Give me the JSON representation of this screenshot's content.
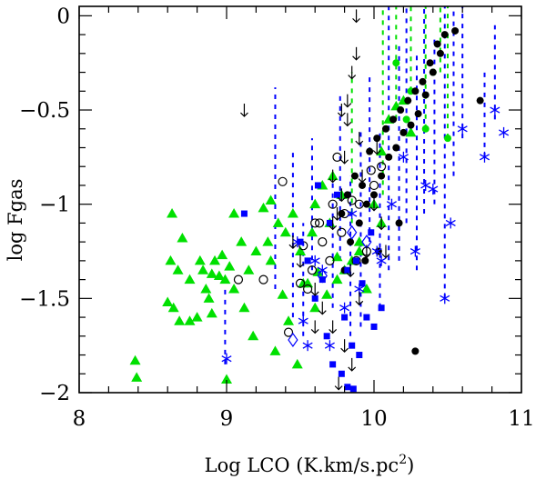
{
  "chart_data": {
    "type": "scatter",
    "title": "",
    "xlabel": "Log LCO (K.km/s.pc",
    "xlabel_sup": "2",
    "xlabel_close": ")",
    "ylabel": "log Fgas",
    "xlim": [
      8,
      11
    ],
    "ylim": [
      -2,
      0.05
    ],
    "x_major_ticks": [
      8,
      9,
      10,
      11
    ],
    "x_tick_labels": [
      "8",
      "9",
      "10",
      "11"
    ],
    "x_minor_step": 0.2,
    "y_major_ticks": [
      -2,
      -1.5,
      -1,
      -0.5,
      0
    ],
    "y_tick_labels": [
      "−2",
      "−1.5",
      "−1",
      "−0.5",
      "0"
    ],
    "y_minor_step": 0.1,
    "colors": {
      "green": "#00e000",
      "blue": "#0000ff",
      "black": "#000000"
    },
    "series": [
      {
        "name": "green triangles",
        "marker": "triangle",
        "color": "#00e000",
        "x": [
          8.38,
          8.39,
          8.6,
          8.62,
          8.64,
          8.67,
          8.63,
          8.7,
          8.75,
          8.8,
          8.82,
          8.84,
          8.86,
          8.88,
          8.9,
          8.92,
          8.95,
          8.97,
          8.99,
          9.0,
          9.02,
          9.05,
          9.1,
          9.15,
          9.2,
          9.25,
          9.3,
          9.35,
          9.4,
          9.45,
          9.5,
          9.55,
          9.6,
          9.65,
          9.7,
          9.75,
          9.8,
          9.85,
          9.9,
          9.95,
          10.0,
          10.05,
          10.1,
          10.15,
          10.2,
          10.25,
          9.12,
          9.28,
          9.38,
          9.52,
          9.62,
          9.68,
          9.72,
          9.78,
          8.68,
          8.75,
          8.9,
          9.05,
          9.18,
          9.33,
          9.48,
          9.58,
          9.3,
          9.42,
          9.6,
          9.75,
          9.9,
          10.05
        ],
        "y": [
          -1.83,
          -1.92,
          -1.52,
          -1.3,
          -1.55,
          -1.35,
          -1.05,
          -1.18,
          -1.4,
          -1.6,
          -1.3,
          -1.35,
          -1.45,
          -1.5,
          -1.37,
          -1.3,
          -1.38,
          -1.27,
          -1.4,
          -1.93,
          -1.33,
          -1.05,
          -1.2,
          -1.35,
          -1.25,
          -1.02,
          -0.98,
          -1.1,
          -1.15,
          -1.05,
          -1.25,
          -1.42,
          -1.0,
          -0.9,
          -1.1,
          -1.28,
          -1.35,
          -1.3,
          -1.2,
          -1.45,
          -1.0,
          -0.72,
          -0.55,
          -0.48,
          -0.45,
          -0.62,
          -1.55,
          -1.2,
          -1.48,
          -1.42,
          -1.36,
          -1.48,
          -0.85,
          -0.95,
          -1.62,
          -1.62,
          -1.58,
          -1.45,
          -1.7,
          -1.78,
          -1.85,
          -1.15,
          -1.3,
          -1.62,
          -1.55,
          -1.4,
          -1.25,
          -1.1
        ]
      },
      {
        "name": "green dots",
        "marker": "dot",
        "color": "#00e000",
        "x": [
          10.15,
          10.25,
          10.35,
          10.5,
          10.4,
          10.22
        ],
        "y": [
          -0.25,
          -0.4,
          -0.6,
          -0.65,
          -0.3,
          -0.55
        ]
      },
      {
        "name": "black dots",
        "marker": "dot",
        "color": "#000000",
        "x": [
          9.78,
          9.82,
          9.87,
          9.92,
          9.97,
          10.02,
          10.08,
          10.13,
          10.18,
          10.23,
          10.28,
          10.33,
          10.38,
          10.43,
          10.48,
          10.55,
          10.72,
          9.84,
          9.9,
          9.95,
          10.0,
          10.05,
          10.1,
          10.15,
          10.2,
          10.25,
          10.3,
          10.35,
          10.4,
          10.45,
          9.8,
          9.94,
          10.03,
          10.17,
          10.28
        ],
        "y": [
          -1.05,
          -0.95,
          -0.85,
          -0.9,
          -0.72,
          -0.65,
          -0.6,
          -0.55,
          -0.5,
          -0.45,
          -0.4,
          -0.35,
          -0.25,
          -0.15,
          -0.1,
          -0.08,
          -0.45,
          -1.2,
          -1.1,
          -1.0,
          -0.95,
          -0.85,
          -0.75,
          -0.7,
          -0.62,
          -0.58,
          -0.52,
          -0.42,
          -0.3,
          -0.2,
          -1.35,
          -1.3,
          -1.25,
          -1.1,
          -1.78
        ]
      },
      {
        "name": "open circles",
        "marker": "circle",
        "color": "#000000",
        "x": [
          9.08,
          9.25,
          9.38,
          9.5,
          9.55,
          9.6,
          9.65,
          9.7,
          9.75,
          9.8,
          9.85,
          9.9,
          9.95,
          10.0,
          10.05,
          9.52,
          9.58,
          9.63,
          9.72,
          9.78,
          9.88,
          9.98,
          9.42
        ],
        "y": [
          -1.4,
          -1.4,
          -0.88,
          -1.42,
          -1.45,
          -1.1,
          -1.2,
          -1.3,
          -0.75,
          -1.05,
          -0.98,
          -1.0,
          -1.25,
          -0.9,
          -0.8,
          -1.22,
          -1.35,
          -1.1,
          -1.0,
          -1.15,
          -1.3,
          -0.82,
          -1.68
        ]
      },
      {
        "name": "blue squares",
        "marker": "square",
        "color": "#0000ff",
        "x": [
          9.12,
          9.5,
          9.55,
          9.6,
          9.65,
          9.7,
          9.75,
          9.8,
          9.85,
          9.9,
          9.95,
          9.72,
          9.78,
          9.82,
          9.92,
          10.0,
          10.05,
          9.62,
          9.68,
          9.88,
          9.98,
          9.82,
          9.86
        ],
        "y": [
          -1.05,
          -1.2,
          -1.3,
          -1.5,
          -1.4,
          -1.1,
          -0.95,
          -1.6,
          -1.75,
          -1.8,
          -1.6,
          -1.85,
          -1.9,
          -1.35,
          -1.42,
          -1.65,
          -1.55,
          -0.9,
          -1.7,
          -1.3,
          -1.15,
          -1.97,
          -1.98
        ]
      },
      {
        "name": "blue asterisks",
        "marker": "asterisk",
        "color": "#0000ff",
        "x": [
          9.0,
          9.48,
          9.52,
          9.6,
          9.65,
          9.7,
          9.8,
          9.85,
          10.02,
          10.12,
          10.2,
          10.28,
          10.35,
          10.48,
          10.6,
          10.75,
          10.82,
          10.88,
          9.55,
          9.9,
          10.05,
          10.4,
          10.52
        ],
        "y": [
          -1.82,
          -1.2,
          -1.62,
          -1.3,
          -1.35,
          -1.75,
          -1.55,
          -1.05,
          -1.25,
          -1.0,
          -0.75,
          -1.25,
          -0.9,
          -1.5,
          -0.6,
          -0.75,
          -0.5,
          -0.62,
          -1.75,
          -1.45,
          -1.3,
          -0.92,
          -1.1
        ]
      },
      {
        "name": "blue diamonds",
        "marker": "diamond",
        "color": "#0000ff",
        "x": [
          9.45,
          9.65,
          9.85,
          9.95
        ],
        "y": [
          -1.72,
          -1.38,
          -1.15,
          -1.2
        ]
      },
      {
        "name": "upper limits",
        "marker": "arrow-down",
        "color": "#000000",
        "x": [
          9.12,
          9.45,
          9.5,
          9.6,
          9.65,
          9.72,
          9.75,
          9.78,
          9.8,
          9.82,
          9.85,
          9.88,
          9.9,
          9.92,
          9.95,
          10.0,
          10.05,
          9.72,
          9.8,
          9.85,
          9.76,
          9.6,
          9.84,
          9.9,
          9.78,
          9.82,
          9.88,
          9.72,
          10.02,
          10.08
        ],
        "y": [
          -0.5,
          -1.2,
          -1.3,
          -1.45,
          -1.55,
          -1.1,
          -1.05,
          -0.95,
          -0.75,
          -0.55,
          -0.3,
          -0.2,
          -0.65,
          -0.85,
          -1.25,
          -1.0,
          -1.1,
          -1.65,
          -1.75,
          -1.85,
          -1.95,
          -1.65,
          -1.35,
          -1.5,
          -0.5,
          -0.45,
          0.0,
          -0.85,
          -0.7,
          -1.25
        ]
      }
    ],
    "dashed_ranges": [
      {
        "color": "#0000ff",
        "x": 8.99,
        "y": [
          -1.85,
          -1.45
        ]
      },
      {
        "color": "#0000ff",
        "x": 9.33,
        "y": [
          -1.45,
          -0.38
        ]
      },
      {
        "color": "#0000ff",
        "x": 9.45,
        "y": [
          -1.6,
          -0.7
        ]
      },
      {
        "color": "#0000ff",
        "x": 9.52,
        "y": [
          -1.7,
          -1.1
        ]
      },
      {
        "color": "#0000ff",
        "x": 9.58,
        "y": [
          -1.35,
          -0.65
        ]
      },
      {
        "color": "#0000ff",
        "x": 9.72,
        "y": [
          -1.55,
          -0.85
        ]
      },
      {
        "color": "#0000ff",
        "x": 9.77,
        "y": [
          -1.3,
          -0.4
        ]
      },
      {
        "color": "#0000ff",
        "x": 9.84,
        "y": [
          -1.7,
          -0.85
        ]
      },
      {
        "color": "#0000ff",
        "x": 9.91,
        "y": [
          -1.65,
          -0.6
        ]
      },
      {
        "color": "#0000ff",
        "x": 9.97,
        "y": [
          -1.2,
          -0.3
        ]
      },
      {
        "color": "#0000ff",
        "x": 10.04,
        "y": [
          -1.55,
          -0.6
        ]
      },
      {
        "color": "#0000ff",
        "x": 10.1,
        "y": [
          -1.35,
          0.05
        ]
      },
      {
        "color": "#0000ff",
        "x": 10.17,
        "y": [
          -1.3,
          -0.15
        ]
      },
      {
        "color": "#0000ff",
        "x": 10.22,
        "y": [
          -1.1,
          0.05
        ]
      },
      {
        "color": "#0000ff",
        "x": 10.29,
        "y": [
          -1.35,
          -0.2
        ]
      },
      {
        "color": "#0000ff",
        "x": 10.34,
        "y": [
          -1.05,
          0.05
        ]
      },
      {
        "color": "#0000ff",
        "x": 10.41,
        "y": [
          -1.0,
          -0.1
        ]
      },
      {
        "color": "#0000ff",
        "x": 10.48,
        "y": [
          -1.5,
          0.05
        ]
      },
      {
        "color": "#0000ff",
        "x": 10.54,
        "y": [
          -0.85,
          0.05
        ]
      },
      {
        "color": "#0000ff",
        "x": 10.6,
        "y": [
          -0.65,
          0.05
        ]
      },
      {
        "color": "#0000ff",
        "x": 10.75,
        "y": [
          -0.75,
          -0.3
        ]
      },
      {
        "color": "#0000ff",
        "x": 10.82,
        "y": [
          -0.55,
          -0.05
        ]
      },
      {
        "color": "#00e000",
        "x": 9.85,
        "y": [
          -1.1,
          -0.3
        ]
      },
      {
        "color": "#00e000",
        "x": 10.06,
        "y": [
          -0.95,
          0.05
        ]
      },
      {
        "color": "#00e000",
        "x": 10.15,
        "y": [
          -0.55,
          0.05
        ]
      },
      {
        "color": "#00e000",
        "x": 10.25,
        "y": [
          -0.4,
          0.05
        ]
      },
      {
        "color": "#00e000",
        "x": 10.35,
        "y": [
          -0.6,
          0.05
        ]
      },
      {
        "color": "#00e000",
        "x": 10.45,
        "y": [
          -0.3,
          0.05
        ]
      },
      {
        "color": "#00e000",
        "x": 10.5,
        "y": [
          -0.65,
          0.05
        ]
      }
    ]
  }
}
